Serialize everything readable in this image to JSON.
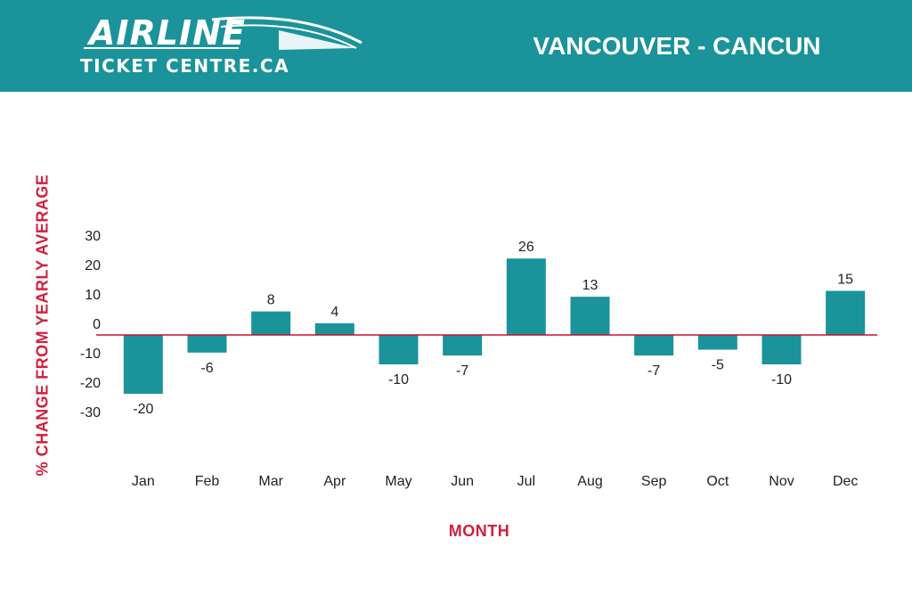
{
  "header": {
    "logo_line1": "AIRLINE",
    "logo_line2": "TICKET CENTRE.CA",
    "route": "VANCOUVER - CANCUN",
    "background_color": "#1a939b"
  },
  "chart_data": {
    "type": "bar",
    "categories": [
      "Jan",
      "Feb",
      "Mar",
      "Apr",
      "May",
      "Jun",
      "Jul",
      "Aug",
      "Sep",
      "Oct",
      "Nov",
      "Dec"
    ],
    "values": [
      -20,
      -6,
      8,
      4,
      -10,
      -7,
      26,
      13,
      -7,
      -5,
      -10,
      15
    ],
    "data_labels": [
      "-20",
      "-6",
      "8",
      "4",
      "-10",
      "-7",
      "26",
      "13",
      "-7",
      "-5",
      "-10",
      "15"
    ],
    "yticks": [
      30,
      20,
      10,
      0,
      -10,
      -20,
      -30
    ],
    "ylim": [
      -30,
      30
    ],
    "xlabel": "MONTH",
    "ylabel": "% CHANGE FROM YEARLY AVERAGE",
    "bar_color": "#1a939b",
    "zero_line_color": "#c8102e",
    "label_color": "#d0203f",
    "grid": false
  }
}
